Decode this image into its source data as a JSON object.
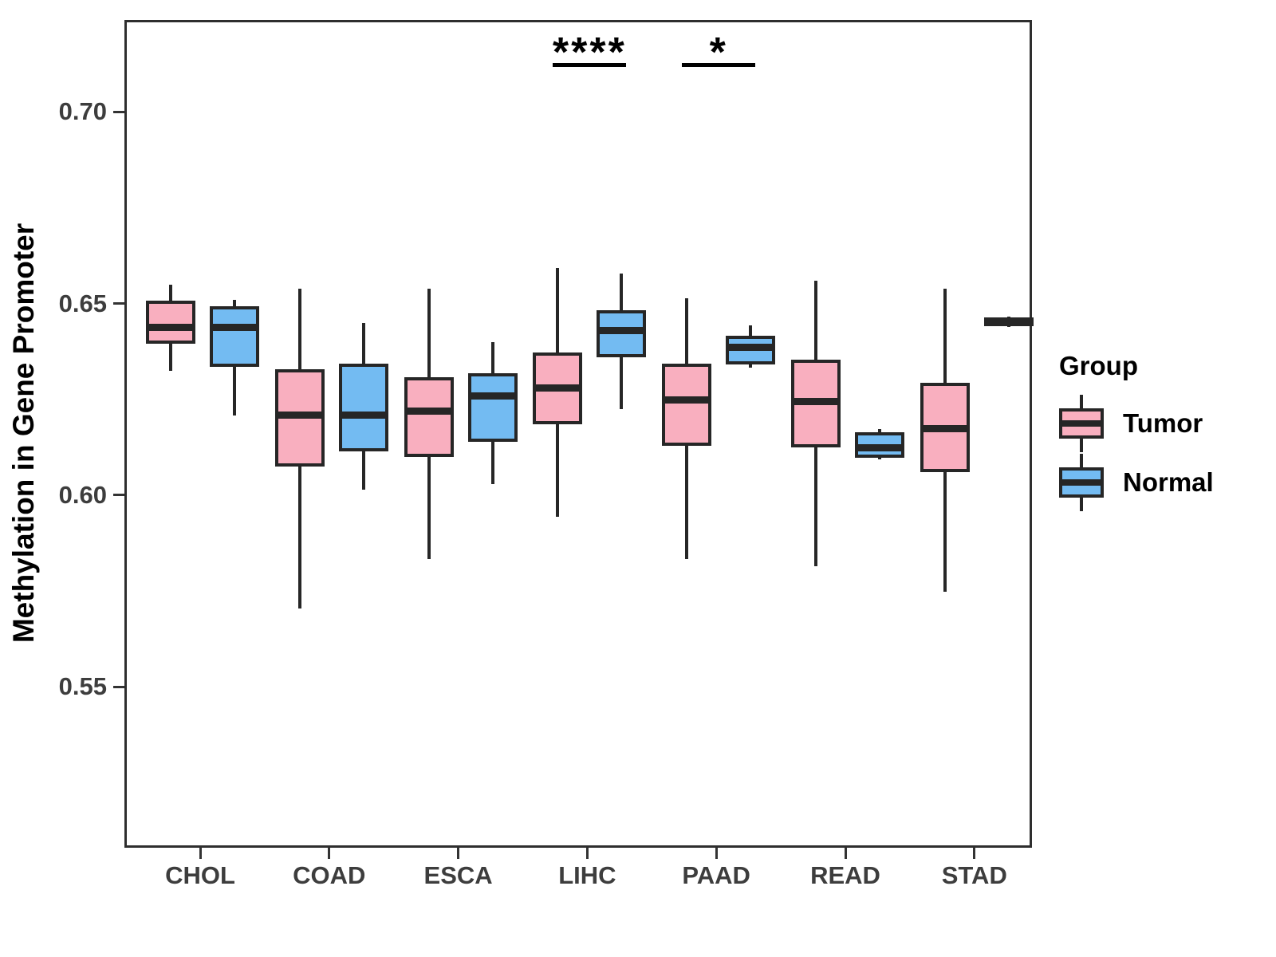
{
  "figure": {
    "title": "",
    "y_axis_title": "Methylation in Gene Promoter",
    "x_axis_title": ""
  },
  "chart_data": {
    "type": "boxplot",
    "title": "",
    "xlabel": "",
    "ylabel": "Methylation in Gene Promoter",
    "categories": [
      "CHOL",
      "COAD",
      "ESCA",
      "LIHC",
      "PAAD",
      "READ",
      "STAD"
    ],
    "ylim": [
      0.508,
      0.724
    ],
    "yticks": [
      "0.55",
      "0.60",
      "0.65",
      "0.70"
    ],
    "ytick_values": [
      0.55,
      0.6,
      0.65,
      0.7
    ],
    "grid": "off",
    "box_stroke": "#262626",
    "axis_text_color": "#3d3d3d",
    "legend": {
      "title": "Group",
      "position": "right"
    },
    "series": [
      {
        "name": "Tumor",
        "color": "#F9AFBF",
        "boxes": [
          {
            "category": "CHOL",
            "whisker_low": 0.633,
            "q1": 0.6405,
            "median": 0.6445,
            "q3": 0.651,
            "whisker_high": 0.6555
          },
          {
            "category": "COAD",
            "whisker_low": 0.571,
            "q1": 0.6085,
            "median": 0.6215,
            "q3": 0.633,
            "whisker_high": 0.6545
          },
          {
            "category": "ESCA",
            "whisker_low": 0.584,
            "q1": 0.611,
            "median": 0.6225,
            "q3": 0.631,
            "whisker_high": 0.6545
          },
          {
            "category": "LIHC",
            "whisker_low": 0.595,
            "q1": 0.6195,
            "median": 0.6285,
            "q3": 0.6375,
            "whisker_high": 0.66
          },
          {
            "category": "PAAD",
            "whisker_low": 0.584,
            "q1": 0.614,
            "median": 0.6255,
            "q3": 0.6345,
            "whisker_high": 0.652
          },
          {
            "category": "READ",
            "whisker_low": 0.582,
            "q1": 0.6135,
            "median": 0.625,
            "q3": 0.6355,
            "whisker_high": 0.6565
          },
          {
            "category": "STAD",
            "whisker_low": 0.5755,
            "q1": 0.607,
            "median": 0.618,
            "q3": 0.6295,
            "whisker_high": 0.6545
          }
        ]
      },
      {
        "name": "Normal",
        "color": "#73BBF2",
        "boxes": [
          {
            "category": "CHOL",
            "whisker_low": 0.6215,
            "q1": 0.6345,
            "median": 0.6445,
            "q3": 0.6495,
            "whisker_high": 0.6515
          },
          {
            "category": "COAD",
            "whisker_low": 0.602,
            "q1": 0.6125,
            "median": 0.6215,
            "q3": 0.6345,
            "whisker_high": 0.6455
          },
          {
            "category": "ESCA",
            "whisker_low": 0.6035,
            "q1": 0.615,
            "median": 0.6265,
            "q3": 0.632,
            "whisker_high": 0.6405
          },
          {
            "category": "LIHC",
            "whisker_low": 0.623,
            "q1": 0.637,
            "median": 0.6435,
            "q3": 0.6485,
            "whisker_high": 0.6585
          },
          {
            "category": "PAAD",
            "whisker_low": 0.6338,
            "q1": 0.6352,
            "median": 0.6392,
            "q3": 0.6418,
            "whisker_high": 0.645
          },
          {
            "category": "READ",
            "whisker_low": 0.61,
            "q1": 0.6108,
            "median": 0.613,
            "q3": 0.6167,
            "whisker_high": 0.6178
          },
          {
            "category": "STAD",
            "whisker_low": 0.6445,
            "q1": 0.6452,
            "median": 0.6458,
            "q3": 0.6465,
            "whisker_high": 0.6472
          }
        ]
      }
    ],
    "significance": [
      {
        "category": "LIHC",
        "label": "****"
      },
      {
        "category": "PAAD",
        "label": "*"
      }
    ]
  }
}
